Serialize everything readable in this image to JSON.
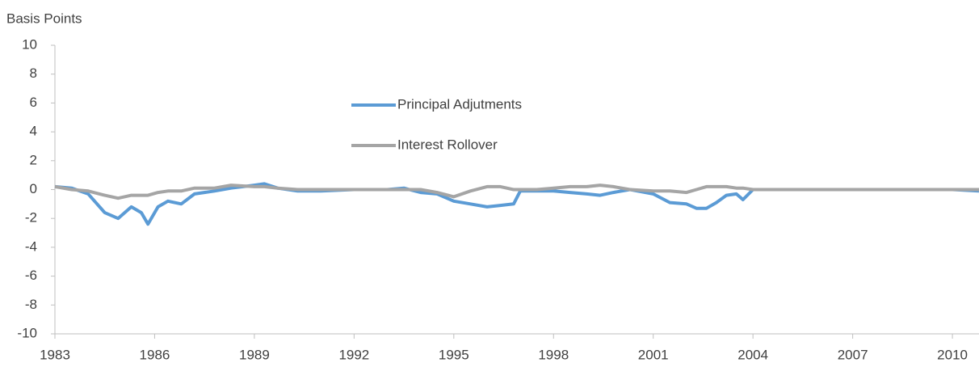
{
  "chart_data": {
    "type": "line",
    "y_label": "Basis Points",
    "x": [
      1983.0,
      1983.5,
      1984.0,
      1984.5,
      1984.9,
      1985.3,
      1985.6,
      1985.8,
      1986.1,
      1986.4,
      1986.8,
      1987.2,
      1987.8,
      1988.3,
      1989.0,
      1989.3,
      1989.7,
      1990.3,
      1991.0,
      1992.0,
      1993.0,
      1993.5,
      1994.0,
      1994.5,
      1995.0,
      1995.5,
      1996.0,
      1996.4,
      1996.8,
      1997.0,
      1997.5,
      1998.0,
      1998.5,
      1999.0,
      1999.4,
      1999.8,
      2000.3,
      2001.0,
      2001.5,
      2002.0,
      2002.3,
      2002.6,
      2002.9,
      2003.2,
      2003.5,
      2003.7,
      2004.0,
      2005.0,
      2007.0,
      2009.0,
      2010.0,
      2010.8
    ],
    "series": [
      {
        "name": "Principal Adjutments",
        "color": "#5b9bd5",
        "values": [
          0.2,
          0.1,
          -0.3,
          -1.6,
          -2.0,
          -1.2,
          -1.6,
          -2.4,
          -1.2,
          -0.8,
          -1.0,
          -0.3,
          -0.1,
          0.1,
          0.3,
          0.4,
          0.1,
          -0.1,
          -0.1,
          0.0,
          0.0,
          0.1,
          -0.2,
          -0.3,
          -0.8,
          -1.0,
          -1.2,
          -1.1,
          -1.0,
          -0.1,
          -0.1,
          -0.1,
          -0.2,
          -0.3,
          -0.4,
          -0.2,
          0.0,
          -0.3,
          -0.9,
          -1.0,
          -1.3,
          -1.3,
          -0.9,
          -0.4,
          -0.3,
          -0.7,
          0.0,
          0.0,
          0.0,
          0.0,
          0.0,
          -0.1
        ]
      },
      {
        "name": "Interest Rollover",
        "color": "#a5a5a5",
        "values": [
          0.2,
          0.0,
          -0.1,
          -0.4,
          -0.6,
          -0.4,
          -0.4,
          -0.4,
          -0.2,
          -0.1,
          -0.1,
          0.1,
          0.1,
          0.3,
          0.2,
          0.2,
          0.1,
          0.0,
          0.0,
          0.0,
          0.0,
          0.0,
          0.0,
          -0.2,
          -0.5,
          -0.1,
          0.2,
          0.2,
          0.0,
          0.0,
          0.0,
          0.1,
          0.2,
          0.2,
          0.3,
          0.2,
          0.0,
          -0.1,
          -0.1,
          -0.2,
          0.0,
          0.2,
          0.2,
          0.2,
          0.1,
          0.1,
          0.0,
          0.0,
          0.0,
          0.0,
          0.0,
          0.0
        ]
      }
    ],
    "xlim": [
      1983,
      2010.8
    ],
    "xticks": [
      1983,
      1986,
      1989,
      1992,
      1995,
      1998,
      2001,
      2004,
      2007,
      2010
    ],
    "ylim": [
      -10,
      10
    ],
    "yticks": [
      -10,
      -8,
      -6,
      -4,
      -2,
      0,
      2,
      4,
      6,
      8,
      10
    ]
  }
}
